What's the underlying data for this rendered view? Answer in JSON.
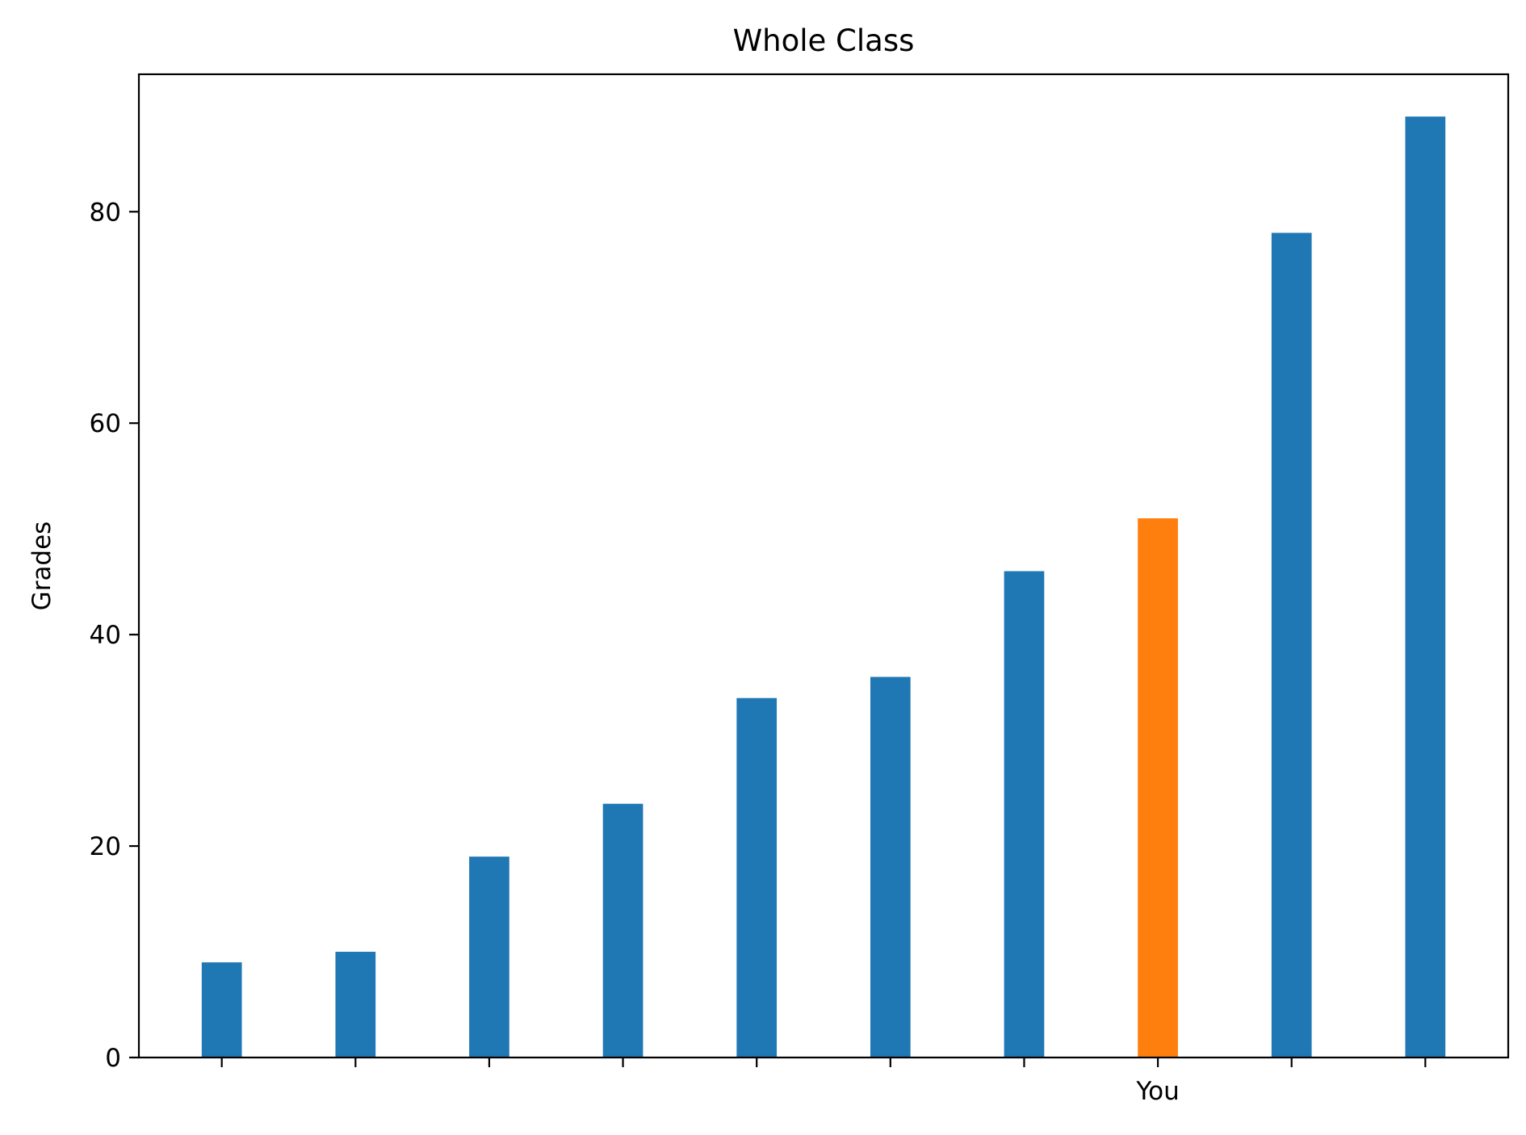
{
  "chart_data": {
    "type": "bar",
    "title": "Whole Class",
    "xlabel": "",
    "ylabel": "Grades",
    "categories": [
      "",
      "",
      "",
      "",
      "",
      "",
      "",
      "You",
      "",
      ""
    ],
    "values": [
      9,
      10,
      19,
      24,
      34,
      36,
      46,
      51,
      78,
      89
    ],
    "highlight_index": 7,
    "ylim": [
      0,
      93
    ],
    "yticks": [
      0,
      20,
      40,
      60,
      80
    ],
    "grid": false,
    "colors": {
      "bar": "#1f77b4",
      "highlight": "#ff7f0e",
      "axis": "#000000",
      "background": "#ffffff"
    }
  }
}
